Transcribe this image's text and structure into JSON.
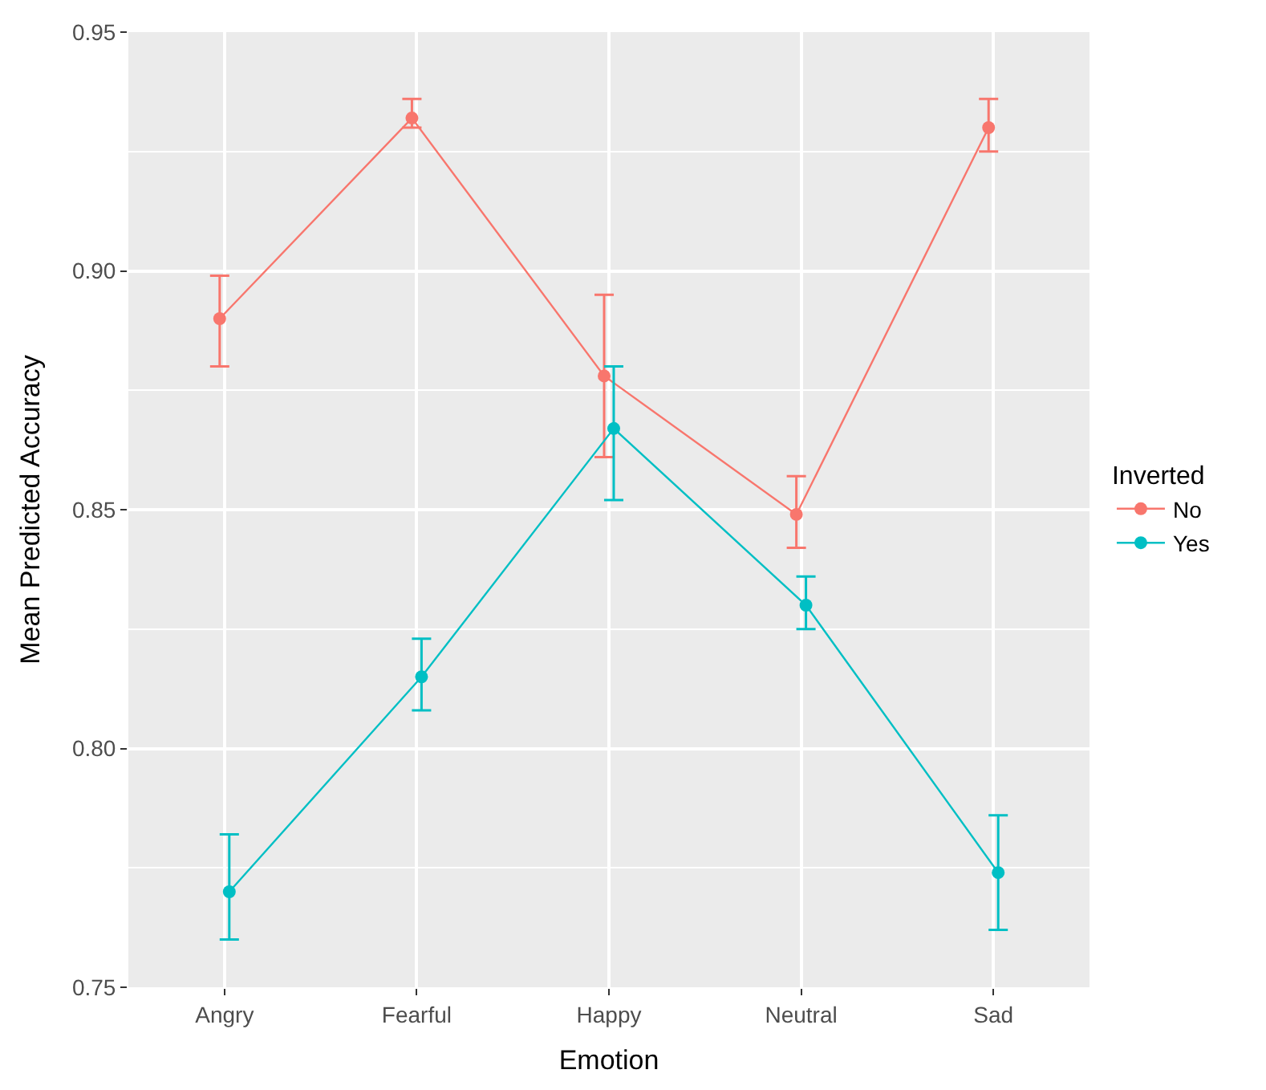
{
  "chart_data": {
    "type": "line",
    "xlabel": "Emotion",
    "ylabel": "Mean Predicted Accuracy",
    "legend_title": "Inverted",
    "categories": [
      "Angry",
      "Fearful",
      "Happy",
      "Neutral",
      "Sad"
    ],
    "series": [
      {
        "name": "No",
        "color": "#f8766d",
        "values": [
          0.89,
          0.932,
          0.878,
          0.849,
          0.93
        ],
        "errors": [
          [
            0.88,
            0.899
          ],
          [
            0.93,
            0.936
          ],
          [
            0.861,
            0.895
          ],
          [
            0.842,
            0.857
          ],
          [
            0.925,
            0.936
          ]
        ]
      },
      {
        "name": "Yes",
        "color": "#00bfc4",
        "values": [
          0.77,
          0.815,
          0.867,
          0.83,
          0.774
        ],
        "errors": [
          [
            0.76,
            0.782
          ],
          [
            0.808,
            0.823
          ],
          [
            0.852,
            0.88
          ],
          [
            0.825,
            0.836
          ],
          [
            0.762,
            0.786
          ]
        ]
      }
    ],
    "ylim": [
      0.75,
      0.95
    ],
    "yticks": [
      {
        "value": 0.75,
        "label": "0.75"
      },
      {
        "value": 0.8,
        "label": "0.80"
      },
      {
        "value": 0.85,
        "label": "0.85"
      },
      {
        "value": 0.9,
        "label": "0.90"
      },
      {
        "value": 0.95,
        "label": "0.95"
      }
    ],
    "grid": true,
    "legend": "right",
    "marker": "circle",
    "line_style": "solid"
  }
}
